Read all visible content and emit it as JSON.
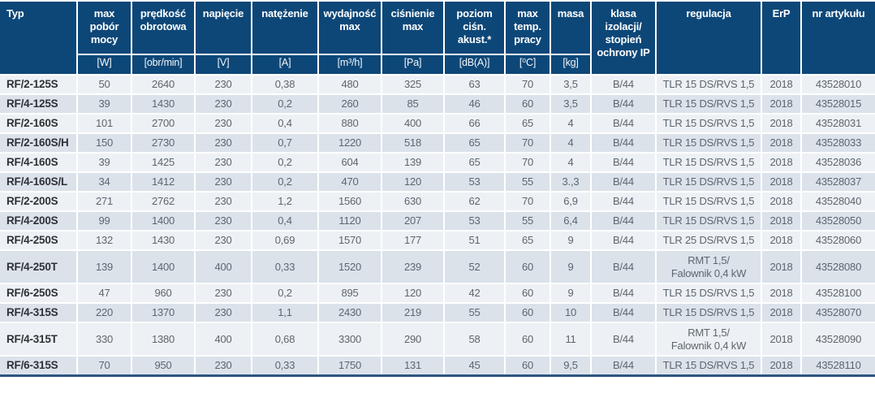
{
  "table": {
    "columns": [
      {
        "key": "typ",
        "label": "Typ",
        "unit": null
      },
      {
        "key": "max-pobor-mocy",
        "label": "max pobór mocy",
        "unit": "[W]"
      },
      {
        "key": "predkosc-obrotowa",
        "label": "prędkość obrotowa",
        "unit": "[obr/min]"
      },
      {
        "key": "napiecie",
        "label": "napięcie",
        "unit": "[V]"
      },
      {
        "key": "natezenie",
        "label": "natężenie",
        "unit": "[A]"
      },
      {
        "key": "wydajnosc-max",
        "label": "wydajność max",
        "unit": "[m³/h]"
      },
      {
        "key": "cisnienie-max",
        "label": "ciśnienie max",
        "unit": "[Pa]"
      },
      {
        "key": "poziom-cisn-akust",
        "label": "poziom ciśn. akust.*",
        "unit": "[dB(A)]"
      },
      {
        "key": "max-temp-pracy",
        "label": "max temp. pracy",
        "unit": "[⁰C]"
      },
      {
        "key": "masa",
        "label": "masa",
        "unit": "[kg]"
      },
      {
        "key": "klasa-izolacji",
        "label": "klasa izolacji/ stopień ochrony IP",
        "unit": null
      },
      {
        "key": "regulacja",
        "label": "regulacja",
        "unit": null
      },
      {
        "key": "erp",
        "label": "ErP",
        "unit": null
      },
      {
        "key": "nr-artykulu",
        "label": "nr artykułu",
        "unit": null
      }
    ],
    "rows": [
      [
        "RF/2-125S",
        "50",
        "2640",
        "230",
        "0,38",
        "480",
        "325",
        "63",
        "70",
        "3,5",
        "B/44",
        "TLR 15 DS/RVS 1,5",
        "2018",
        "43528010"
      ],
      [
        "RF/4-125S",
        "39",
        "1430",
        "230",
        "0,2",
        "260",
        "85",
        "46",
        "60",
        "3,5",
        "B/44",
        "TLR 15 DS/RVS 1,5",
        "2018",
        "43528015"
      ],
      [
        "RF/2-160S",
        "101",
        "2700",
        "230",
        "0,4",
        "880",
        "400",
        "66",
        "65",
        "4",
        "B/44",
        "TLR 15 DS/RVS 1,5",
        "2018",
        "43528031"
      ],
      [
        "RF/2-160S/H",
        "150",
        "2730",
        "230",
        "0,7",
        "1220",
        "518",
        "65",
        "70",
        "4",
        "B/44",
        "TLR 15 DS/RVS 1,5",
        "2018",
        "43528033"
      ],
      [
        "RF/4-160S",
        "39",
        "1425",
        "230",
        "0,2",
        "604",
        "139",
        "65",
        "70",
        "4",
        "B/44",
        "TLR 15 DS/RVS 1,5",
        "2018",
        "43528036"
      ],
      [
        "RF/4-160S/L",
        "34",
        "1412",
        "230",
        "0,2",
        "470",
        "120",
        "53",
        "55",
        "3.,3",
        "B/44",
        "TLR 15 DS/RVS 1,5",
        "2018",
        "43528037"
      ],
      [
        "RF/2-200S",
        "271",
        "2762",
        "230",
        "1,2",
        "1560",
        "630",
        "62",
        "70",
        "6,9",
        "B/44",
        "TLR 15 DS/RVS 1,5",
        "2018",
        "43528040"
      ],
      [
        "RF/4-200S",
        "99",
        "1400",
        "230",
        "0,4",
        "1120",
        "207",
        "53",
        "55",
        "6,4",
        "B/44",
        "TLR 15 DS/RVS 1,5",
        "2018",
        "43528050"
      ],
      [
        "RF/4-250S",
        "132",
        "1430",
        "230",
        "0,69",
        "1570",
        "177",
        "51",
        "65",
        "9",
        "B/44",
        "TLR 25 DS/RVS 1,5",
        "2018",
        "43528060"
      ],
      [
        "RF/4-250T",
        "139",
        "1400",
        "400",
        "0,33",
        "1520",
        "239",
        "52",
        "60",
        "9",
        "B/44",
        "RMT 1,5/\nFalownik 0,4 kW",
        "2018",
        "43528080"
      ],
      [
        "RF/6-250S",
        "47",
        "960",
        "230",
        "0,2",
        "895",
        "120",
        "42",
        "60",
        "9",
        "B/44",
        "TLR 15 DS/RVS 1,5",
        "2018",
        "43528100"
      ],
      [
        "RF/4-315S",
        "220",
        "1370",
        "230",
        "1,1",
        "2430",
        "219",
        "55",
        "60",
        "10",
        "B/44",
        "TLR 15 DS/RVS 1,5",
        "2018",
        "43528070"
      ],
      [
        "RF/4-315T",
        "330",
        "1380",
        "400",
        "0,68",
        "3300",
        "290",
        "58",
        "60",
        "11",
        "B/44",
        "RMT 1,5/\nFalownik 0,4 kW",
        "2018",
        "43528090"
      ],
      [
        "RF/6-315S",
        "70",
        "950",
        "230",
        "0,33",
        "1750",
        "131",
        "45",
        "60",
        "9,5",
        "B/44",
        "TLR 15 DS/RVS 1,5",
        "2018",
        "43528110"
      ]
    ]
  }
}
